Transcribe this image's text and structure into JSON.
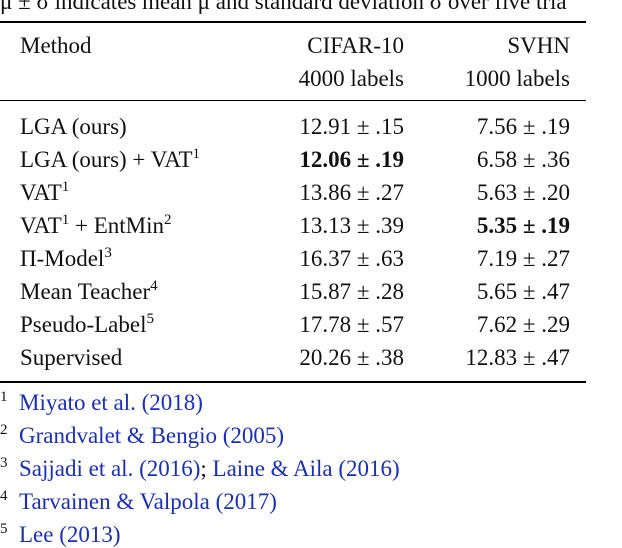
{
  "caption": "μ ± σ indicates mean μ and standard deviation σ over five tria",
  "table": {
    "header": {
      "method": "Method",
      "columns": [
        {
          "name": "CIFAR-10",
          "sub": "4000 labels"
        },
        {
          "name": "SVHN",
          "sub": "1000 labels"
        }
      ]
    },
    "rows": [
      {
        "method": [
          {
            "text": "LGA (ours)"
          }
        ],
        "cells": [
          {
            "text": "12.91 ± .15"
          },
          {
            "text": "7.56 ± .19"
          }
        ]
      },
      {
        "method": [
          {
            "text": "LGA (ours) + VAT"
          },
          {
            "sup": "1"
          }
        ],
        "cells": [
          {
            "text": "12.06 ± .19",
            "bold": true
          },
          {
            "text": "6.58 ± .36"
          }
        ]
      },
      {
        "method": [
          {
            "text": "VAT"
          },
          {
            "sup": "1"
          }
        ],
        "cells": [
          {
            "text": "13.86 ± .27"
          },
          {
            "text": "5.63 ± .20"
          }
        ]
      },
      {
        "method": [
          {
            "text": "VAT"
          },
          {
            "sup": "1"
          },
          {
            "text": " + EntMin"
          },
          {
            "sup": "2"
          }
        ],
        "cells": [
          {
            "text": "13.13 ± .39"
          },
          {
            "text": "5.35 ± .19",
            "bold": true
          }
        ]
      },
      {
        "method": [
          {
            "text": "Π-Model"
          },
          {
            "sup": "3"
          }
        ],
        "cells": [
          {
            "text": "16.37 ± .63"
          },
          {
            "text": "7.19 ± .27"
          }
        ]
      },
      {
        "method": [
          {
            "text": "Mean Teacher"
          },
          {
            "sup": "4"
          }
        ],
        "cells": [
          {
            "text": "15.87 ± .28"
          },
          {
            "text": "5.65 ± .47"
          }
        ]
      },
      {
        "method": [
          {
            "text": "Pseudo-Label"
          },
          {
            "sup": "5"
          }
        ],
        "cells": [
          {
            "text": "17.78 ± .57"
          },
          {
            "text": "7.62 ± .29"
          }
        ]
      },
      {
        "method": [
          {
            "text": "Supervised"
          }
        ],
        "cells": [
          {
            "text": "20.26 ± .38"
          },
          {
            "text": "12.83 ± .47"
          }
        ]
      }
    ]
  },
  "footnotes": [
    {
      "mark": "1",
      "parts": [
        {
          "link": "Miyato et al. (2018)"
        }
      ]
    },
    {
      "mark": "2",
      "parts": [
        {
          "link": "Grandvalet & Bengio (2005)"
        }
      ]
    },
    {
      "mark": "3",
      "parts": [
        {
          "link": "Sajjadi et al. (2016)"
        },
        {
          "text": "; "
        },
        {
          "link": "Laine & Aila (2016)"
        }
      ]
    },
    {
      "mark": "4",
      "parts": [
        {
          "link": "Tarvainen & Valpola (2017)"
        }
      ]
    },
    {
      "mark": "5",
      "parts": [
        {
          "link": "Lee (2013)"
        }
      ]
    }
  ]
}
